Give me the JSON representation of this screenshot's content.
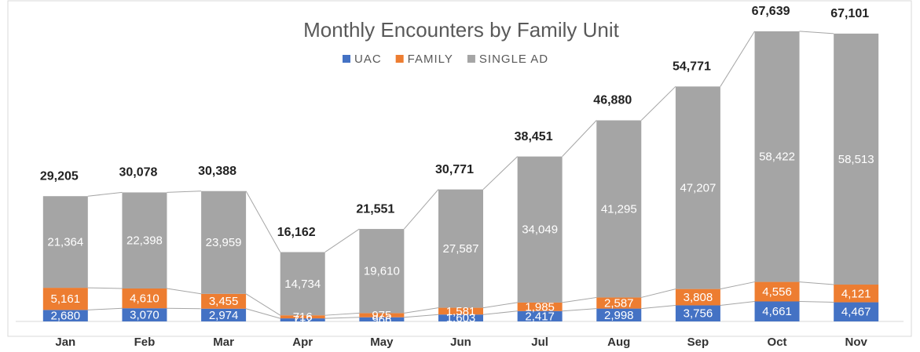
{
  "chart_data": {
    "type": "stacked_bar",
    "title": "Monthly Encounters by Family Unit",
    "categories": [
      "Jan",
      "Feb",
      "Mar",
      "Apr",
      "May",
      "Jun",
      "Jul",
      "Aug",
      "Sep",
      "Oct",
      "Nov"
    ],
    "series": [
      {
        "name": "UAC",
        "color": "#4472c4",
        "values": [
          2680,
          3070,
          2974,
          712,
          966,
          1603,
          2417,
          2998,
          3756,
          4661,
          4467
        ],
        "value_labels": [
          "2,680",
          "3,070",
          "2,974",
          "712",
          "966",
          "1,603",
          "2,417",
          "2,998",
          "3,756",
          "4,661",
          "4,467"
        ]
      },
      {
        "name": "FAMILY",
        "color": "#ed7d31",
        "values": [
          5161,
          4610,
          3455,
          716,
          975,
          1581,
          1985,
          2587,
          3808,
          4556,
          4121
        ],
        "value_labels": [
          "5,161",
          "4,610",
          "3,455",
          "716",
          "975",
          "1,581",
          "1,985",
          "2,587",
          "3,808",
          "4,556",
          "4,121"
        ]
      },
      {
        "name": "SINGLE AD",
        "color": "#a5a5a5",
        "values": [
          21364,
          22398,
          23959,
          14734,
          19610,
          27587,
          34049,
          41295,
          47207,
          58422,
          58513
        ],
        "value_labels": [
          "21,364",
          "22,398",
          "23,959",
          "14,734",
          "19,610",
          "27,587",
          "34,049",
          "41,295",
          "47,207",
          "58,422",
          "58,513"
        ]
      }
    ],
    "totals": {
      "values": [
        29205,
        30078,
        30388,
        16162,
        21551,
        30771,
        38451,
        46880,
        54771,
        67639,
        67101
      ],
      "value_labels": [
        "29,205",
        "30,078",
        "30,388",
        "16,162",
        "21,551",
        "30,771",
        "38,451",
        "46,880",
        "54,771",
        "67,639",
        "67,101"
      ]
    },
    "ylim": [
      0,
      70000
    ]
  }
}
